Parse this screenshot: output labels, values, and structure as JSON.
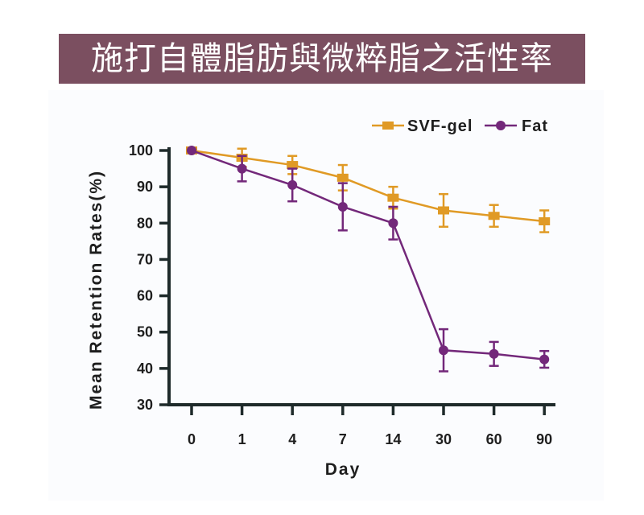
{
  "title": "施打自體脂肪與微粹脂之活性率",
  "chart_data": {
    "type": "line",
    "title": "施打自體脂肪與微粹脂之活性率",
    "xlabel": "Day",
    "ylabel": "Mean Retention Rates(%)",
    "categories": [
      "0",
      "1",
      "4",
      "7",
      "14",
      "30",
      "60",
      "90"
    ],
    "ylim": [
      30,
      100
    ],
    "yticks": [
      "30",
      "40",
      "50",
      "60",
      "70",
      "80",
      "90",
      "100"
    ],
    "legend_position": "top-right",
    "series": [
      {
        "name": "SVF-gel",
        "color": "#e09a25",
        "marker": "square",
        "values": [
          100,
          98,
          96,
          92.5,
          87,
          83.5,
          82,
          80.5
        ],
        "errors": [
          0.5,
          2.5,
          2.5,
          3.5,
          3,
          4.5,
          3,
          3
        ]
      },
      {
        "name": "Fat",
        "color": "#73287a",
        "marker": "circle",
        "values": [
          100,
          95,
          90.5,
          84.5,
          80,
          45,
          44,
          42.5
        ],
        "errors": [
          0.5,
          3.5,
          4.5,
          6.5,
          4.5,
          5.8,
          3.3,
          2.3
        ]
      }
    ]
  }
}
